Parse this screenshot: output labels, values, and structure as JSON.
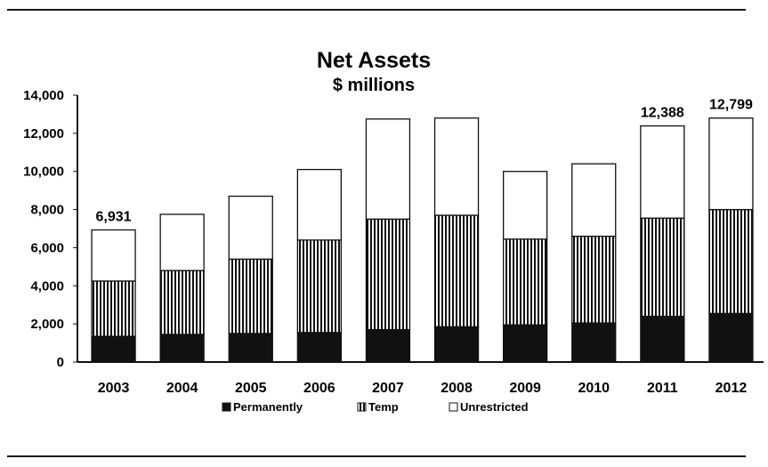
{
  "chart_data": {
    "type": "bar",
    "stacked": true,
    "title": "Net Assets",
    "subtitle": "$ millions",
    "xlabel": "",
    "ylabel": "",
    "ylim": [
      0,
      14000
    ],
    "yticks": [
      "0",
      "2,000",
      "4,000",
      "6,000",
      "8,000",
      "10,000",
      "12,000",
      "14,000"
    ],
    "categories": [
      "2003",
      "2004",
      "2005",
      "2006",
      "2007",
      "2008",
      "2009",
      "2010",
      "2011",
      "2012"
    ],
    "series": [
      {
        "name": "Permanently",
        "fill": "solid",
        "color": "#111111",
        "values": [
          1350,
          1450,
          1500,
          1550,
          1700,
          1850,
          1950,
          2050,
          2400,
          2550
        ]
      },
      {
        "name": "Temp",
        "fill": "vertical-stripes",
        "color": "#111111",
        "values": [
          2900,
          3350,
          3900,
          4850,
          5800,
          5850,
          4500,
          4550,
          5150,
          5450
        ]
      },
      {
        "name": "Unrestricted",
        "fill": "white",
        "color": "#ffffff",
        "values": [
          2681,
          2950,
          3300,
          3700,
          5250,
          5100,
          3550,
          3800,
          4838,
          4799
        ]
      }
    ],
    "data_labels": [
      {
        "category": "2003",
        "text": "6,931"
      },
      {
        "category": "2011",
        "text": "12,388"
      },
      {
        "category": "2012",
        "text": "12,799"
      }
    ],
    "grid": false,
    "legend_position": "bottom"
  }
}
